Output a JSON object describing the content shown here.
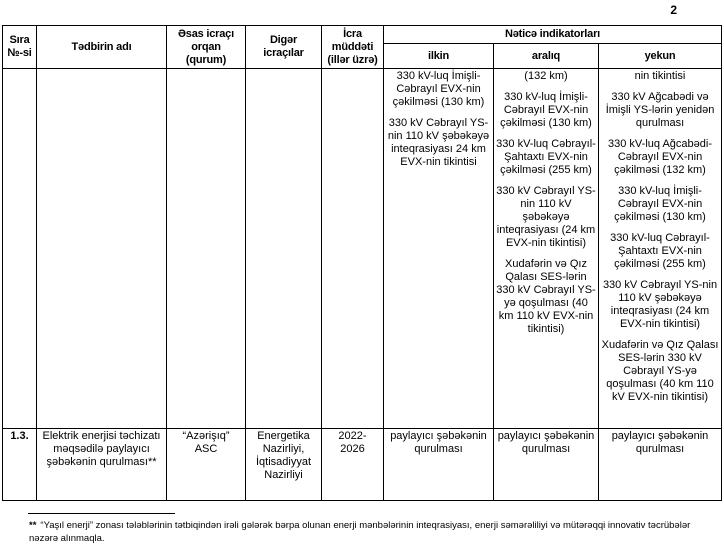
{
  "page_number": "2",
  "table": {
    "header": {
      "sira": "Sıra\n№-si",
      "tedbirin_adi": "Tədbirin adı",
      "esas_icraci": "Əsas icraçı\norqan\n(qurum)",
      "diger_icracilar": "Digər\nicraçılar",
      "icra_muddeti": "İcra\nmüddəti\n(illər üzrə)",
      "netice_indikatorlari": "Nəticə indikatorları",
      "ilkin": "ilkin",
      "araliq": "aralıq",
      "yekun": "yekun"
    },
    "rows": [
      {
        "sira": "",
        "tedbir": "",
        "esas": "",
        "diger": "",
        "icra": "",
        "ilkin_items": [
          "330 kV-luq İmişli-Cəbrayıl EVX-nin çəkilməsi (130 km)",
          "330 kV Cəbrayıl YS-nin 110 kV şəbəkəyə inteqrasiyası 24 km EVX-nin tikintisi"
        ],
        "araliq_items": [
          "(132 km)",
          "330 kV-luq İmişli-Cəbrayıl EVX-nin çəkilməsi (130 km)",
          "330 kV-luq Cəbrayıl- Şahtaxtı EVX-nin çəkilməsi (255 km)",
          "330 kV Cəbrayıl YS-nin 110 kV şəbəkəyə inteqrasiyası (24 km EVX-nin tikintisi)",
          "Xudafərin və Qız Qalası SES-lərin 330 kV Cəbrayıl YS-yə qoşulması (40 km 110 kV EVX-nin tikintisi)"
        ],
        "yekun_items": [
          "nin tikintisi",
          "330 kV Ağcabədi və İmişli YS-lərin yenidən qurulması",
          "330 kV-luq Ağcabədi-Cəbrayıl EVX-nin çəkilməsi (132 km)",
          "330 kV-luq İmişli-Cəbrayıl EVX-nin çəkilməsi (130 km)",
          "330 kV-luq Cəbrayıl-Şahtaxtı EVX-nin çəkilməsi (255 km)",
          "330 kV Cəbrayıl YS-nin 110 kV şəbəkəyə inteqrasiyası (24 km EVX-nin tikintisi)",
          "Xudafərin və Qız Qalası SES-lərin 330 kV Cəbrayıl YS-yə qoşulması (40 km 110 kV EVX-nin tikintisi)"
        ]
      },
      {
        "sira": "1.3.",
        "tedbir": "Elektrik enerjisi təchizatı məqsədilə paylayıcı şəbəkənin qurulması**",
        "esas": "“Azərişıq”\nASC",
        "diger": "Energetika\nNazirliyi,\nİqtisadiyyat\nNazirliyi",
        "icra": "2022-\n2026",
        "ilkin_items": [
          "paylayıcı şəbəkənin qurulması"
        ],
        "araliq_items": [
          "paylayıcı şəbəkənin qurulması"
        ],
        "yekun_items": [
          "paylayıcı şəbəkənin qurulması"
        ]
      }
    ]
  },
  "footnote": {
    "marker": "**",
    "text": "“Yaşıl enerji” zonası tələblərinin tətbiqindən irəli gələrək bərpa olunan enerji mənbələrinin inteqrasiyası, enerji səmərəliliyi və mütərəqqi innovativ təcrübələr nəzərə alınmaqla."
  }
}
